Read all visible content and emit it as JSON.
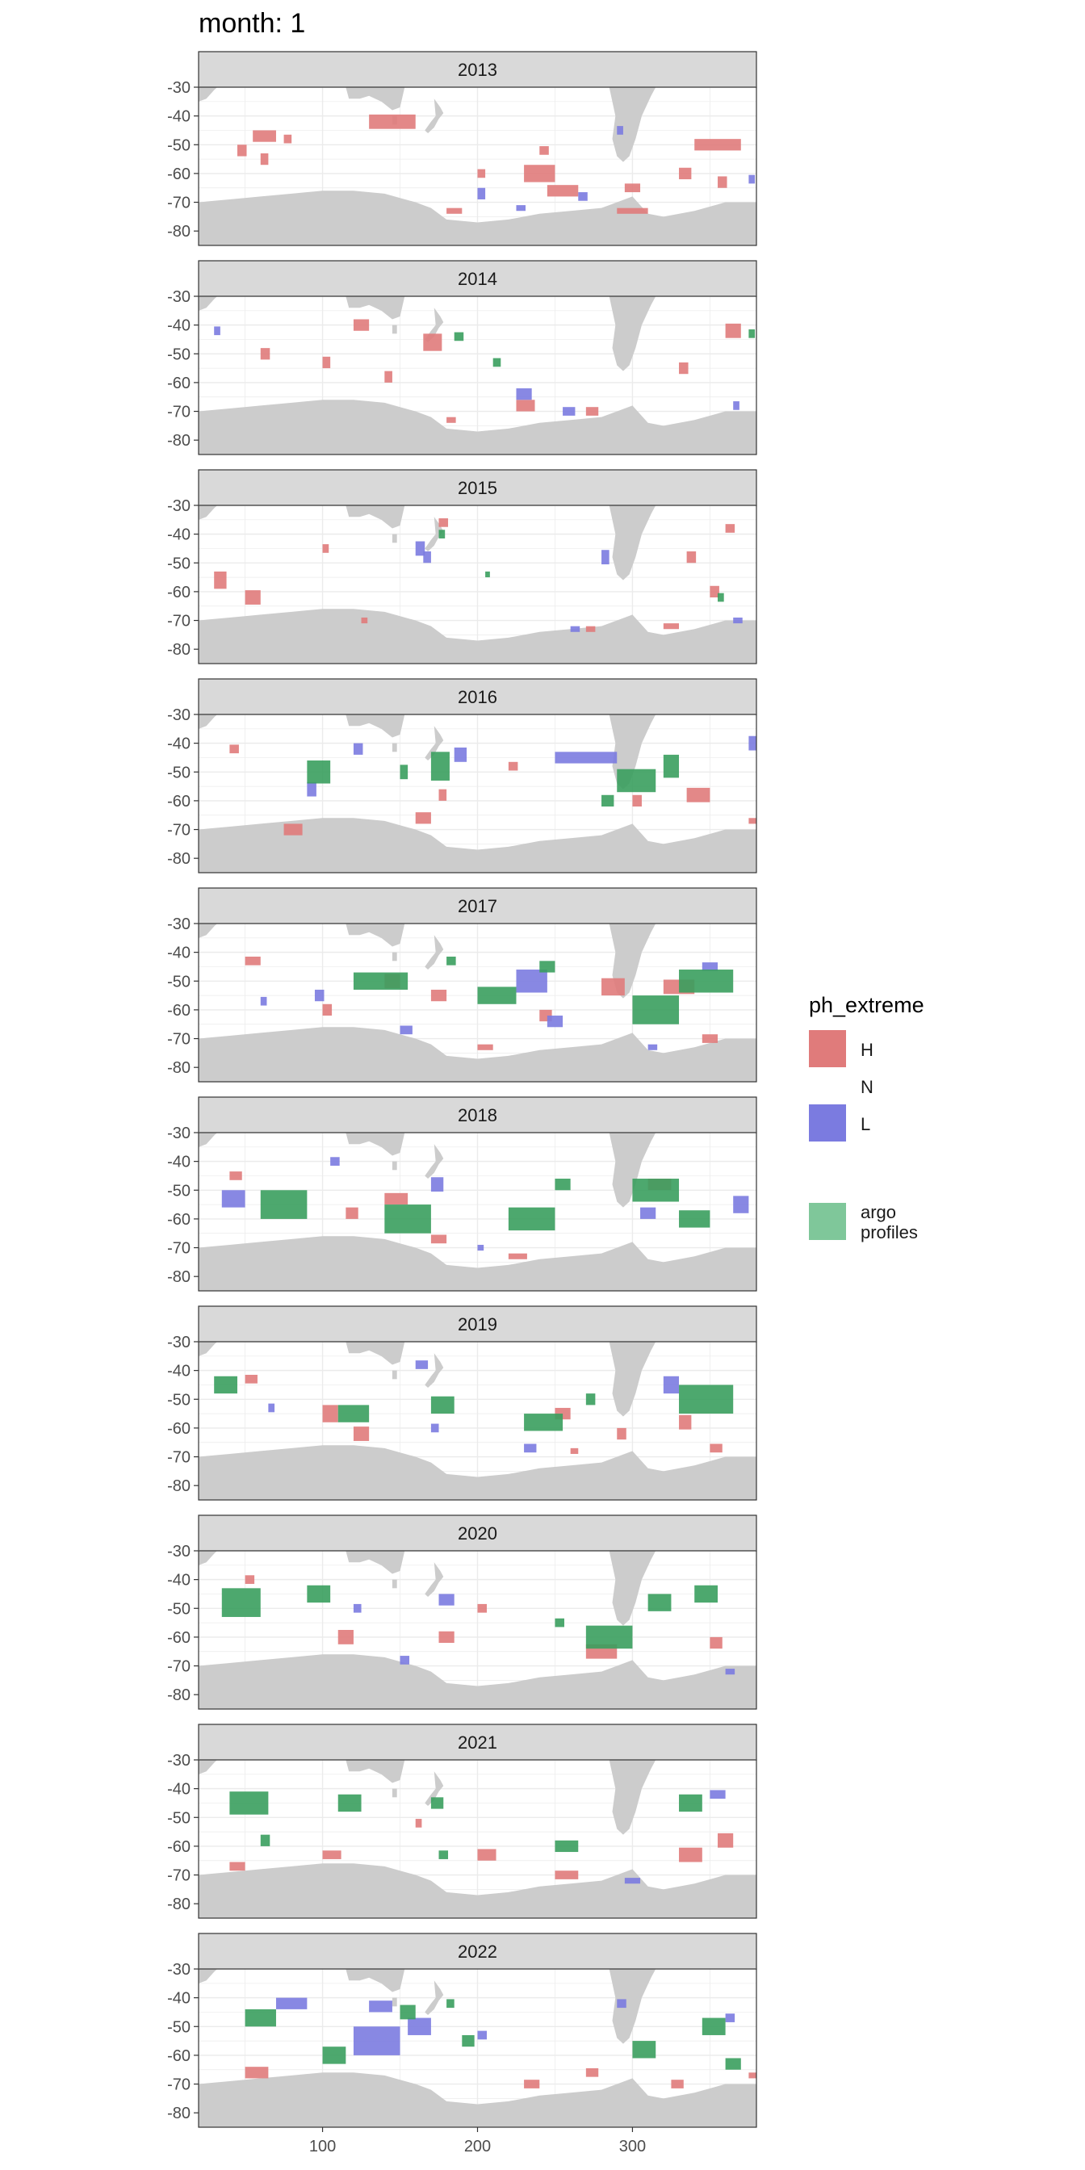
{
  "title": "month: 1",
  "colors": {
    "H": "#E07B7B",
    "N": "#FFFFFF",
    "L": "#7B7BE0",
    "argo": "#3A9E5E",
    "argo_legend": "#7FC79A",
    "land": "#CCCCCC",
    "strip": "#D9D9D9",
    "grid": "#EBEBEB",
    "panel_border": "#333333"
  },
  "chart_data": {
    "type": "heatmap",
    "facet_variable": "year",
    "facets": [
      "2013",
      "2014",
      "2015",
      "2016",
      "2017",
      "2018",
      "2019",
      "2020",
      "2021",
      "2022"
    ],
    "xlim": [
      20,
      380
    ],
    "ylim": [
      -85,
      -30
    ],
    "x_ticks": [
      100,
      200,
      300
    ],
    "x_tick_labels": [
      "100",
      "200",
      "300"
    ],
    "y_ticks": [
      -30,
      -40,
      -50,
      -60,
      -70,
      -80
    ],
    "y_tick_labels": [
      "-30",
      "-40",
      "-50",
      "-60",
      "-70",
      "-80"
    ],
    "legend": {
      "title": "ph_extreme",
      "position": "right",
      "entries": [
        {
          "key": "H",
          "label": "H"
        },
        {
          "key": "N",
          "label": "N"
        },
        {
          "key": "L",
          "label": "L"
        },
        {
          "key": "argo_legend",
          "label": "argo\nprofiles"
        }
      ]
    },
    "regions": [
      {
        "year": "2013",
        "H": [
          [
            55,
            -47,
            15,
            4
          ],
          [
            45,
            -52,
            6,
            4
          ],
          [
            60,
            -55,
            5,
            4
          ],
          [
            130,
            -42,
            30,
            5
          ],
          [
            75,
            -48,
            5,
            3
          ],
          [
            230,
            -60,
            20,
            6
          ],
          [
            245,
            -66,
            20,
            4
          ],
          [
            295,
            -65,
            10,
            3
          ],
          [
            340,
            -50,
            30,
            4
          ],
          [
            330,
            -60,
            8,
            4
          ],
          [
            355,
            -63,
            6,
            4
          ],
          [
            180,
            -73,
            10,
            2
          ],
          [
            290,
            -73,
            20,
            2
          ],
          [
            200,
            -60,
            5,
            3
          ],
          [
            240,
            -52,
            6,
            3
          ]
        ],
        "L": [
          [
            200,
            -67,
            5,
            4
          ],
          [
            265,
            -68,
            6,
            3
          ],
          [
            290,
            -45,
            4,
            3
          ],
          [
            225,
            -72,
            6,
            2
          ],
          [
            375,
            -62,
            4,
            3
          ]
        ],
        "argo": []
      },
      {
        "year": "2014",
        "H": [
          [
            120,
            -40,
            10,
            4
          ],
          [
            165,
            -46,
            12,
            6
          ],
          [
            60,
            -50,
            6,
            4
          ],
          [
            330,
            -55,
            6,
            4
          ],
          [
            360,
            -42,
            10,
            5
          ],
          [
            100,
            -53,
            5,
            4
          ],
          [
            225,
            -68,
            12,
            4
          ],
          [
            140,
            -58,
            5,
            4
          ],
          [
            270,
            -70,
            8,
            3
          ],
          [
            180,
            -73,
            6,
            2
          ]
        ],
        "L": [
          [
            30,
            -42,
            4,
            3
          ],
          [
            225,
            -64,
            10,
            4
          ],
          [
            255,
            -70,
            8,
            3
          ],
          [
            365,
            -68,
            4,
            3
          ]
        ],
        "argo": [
          [
            185,
            -44,
            6,
            3
          ],
          [
            210,
            -53,
            5,
            3
          ],
          [
            375,
            -43,
            4,
            3
          ]
        ]
      },
      {
        "year": "2015",
        "H": [
          [
            30,
            -56,
            8,
            6
          ],
          [
            50,
            -62,
            10,
            5
          ],
          [
            100,
            -45,
            4,
            3
          ],
          [
            175,
            -36,
            6,
            3
          ],
          [
            335,
            -48,
            6,
            4
          ],
          [
            350,
            -60,
            6,
            4
          ],
          [
            270,
            -73,
            6,
            2
          ],
          [
            320,
            -72,
            10,
            2
          ],
          [
            360,
            -38,
            6,
            3
          ],
          [
            125,
            -70,
            4,
            2
          ]
        ],
        "L": [
          [
            160,
            -45,
            6,
            5
          ],
          [
            165,
            -48,
            5,
            4
          ],
          [
            280,
            -48,
            5,
            5
          ],
          [
            260,
            -73,
            6,
            2
          ],
          [
            365,
            -70,
            6,
            2
          ]
        ],
        "argo": [
          [
            175,
            -40,
            4,
            3
          ],
          [
            355,
            -62,
            4,
            3
          ],
          [
            205,
            -54,
            3,
            2
          ]
        ]
      },
      {
        "year": "2016",
        "H": [
          [
            75,
            -70,
            12,
            4
          ],
          [
            160,
            -66,
            10,
            4
          ],
          [
            175,
            -58,
            5,
            4
          ],
          [
            335,
            -58,
            15,
            5
          ],
          [
            300,
            -60,
            6,
            4
          ],
          [
            375,
            -67,
            5,
            2
          ],
          [
            40,
            -42,
            6,
            3
          ],
          [
            220,
            -48,
            6,
            3
          ]
        ],
        "L": [
          [
            250,
            -45,
            40,
            4
          ],
          [
            90,
            -56,
            6,
            5
          ],
          [
            120,
            -42,
            6,
            4
          ],
          [
            185,
            -44,
            8,
            5
          ],
          [
            375,
            -40,
            5,
            5
          ]
        ],
        "argo": [
          [
            90,
            -50,
            15,
            8
          ],
          [
            170,
            -48,
            12,
            10
          ],
          [
            290,
            -53,
            25,
            8
          ],
          [
            320,
            -48,
            10,
            8
          ],
          [
            150,
            -50,
            5,
            5
          ],
          [
            280,
            -60,
            8,
            4
          ]
        ]
      },
      {
        "year": "2017",
        "H": [
          [
            50,
            -43,
            10,
            3
          ],
          [
            140,
            -50,
            10,
            5
          ],
          [
            170,
            -55,
            10,
            4
          ],
          [
            280,
            -52,
            15,
            6
          ],
          [
            320,
            -52,
            20,
            5
          ],
          [
            100,
            -60,
            6,
            4
          ],
          [
            345,
            -70,
            10,
            3
          ],
          [
            200,
            -73,
            10,
            2
          ],
          [
            240,
            -62,
            8,
            4
          ]
        ],
        "L": [
          [
            225,
            -50,
            20,
            8
          ],
          [
            245,
            -64,
            10,
            4
          ],
          [
            95,
            -55,
            6,
            4
          ],
          [
            60,
            -57,
            4,
            3
          ],
          [
            345,
            -45,
            10,
            3
          ],
          [
            310,
            -73,
            6,
            2
          ],
          [
            150,
            -67,
            8,
            3
          ]
        ],
        "argo": [
          [
            120,
            -50,
            35,
            6
          ],
          [
            200,
            -55,
            25,
            6
          ],
          [
            300,
            -60,
            30,
            10
          ],
          [
            330,
            -50,
            35,
            8
          ],
          [
            180,
            -43,
            6,
            3
          ],
          [
            240,
            -45,
            10,
            4
          ]
        ]
      },
      {
        "year": "2018",
        "H": [
          [
            140,
            -53,
            15,
            4
          ],
          [
            115,
            -58,
            8,
            4
          ],
          [
            310,
            -48,
            15,
            4
          ],
          [
            220,
            -73,
            12,
            2
          ],
          [
            170,
            -67,
            10,
            3
          ],
          [
            40,
            -45,
            8,
            3
          ]
        ],
        "L": [
          [
            35,
            -53,
            15,
            6
          ],
          [
            170,
            -48,
            8,
            5
          ],
          [
            305,
            -58,
            10,
            4
          ],
          [
            365,
            -55,
            10,
            6
          ],
          [
            200,
            -70,
            4,
            2
          ],
          [
            105,
            -40,
            6,
            3
          ]
        ],
        "argo": [
          [
            60,
            -55,
            30,
            10
          ],
          [
            140,
            -60,
            30,
            10
          ],
          [
            220,
            -60,
            30,
            8
          ],
          [
            300,
            -50,
            30,
            8
          ],
          [
            330,
            -60,
            20,
            6
          ],
          [
            250,
            -48,
            10,
            4
          ]
        ]
      },
      {
        "year": "2019",
        "H": [
          [
            100,
            -55,
            10,
            6
          ],
          [
            120,
            -62,
            10,
            5
          ],
          [
            250,
            -55,
            10,
            4
          ],
          [
            330,
            -58,
            8,
            5
          ],
          [
            350,
            -67,
            8,
            3
          ],
          [
            50,
            -43,
            8,
            3
          ],
          [
            290,
            -62,
            6,
            4
          ],
          [
            260,
            -68,
            5,
            2
          ]
        ],
        "L": [
          [
            320,
            -45,
            10,
            6
          ],
          [
            160,
            -38,
            8,
            3
          ],
          [
            170,
            -60,
            5,
            3
          ],
          [
            230,
            -67,
            8,
            3
          ],
          [
            65,
            -53,
            4,
            3
          ]
        ],
        "argo": [
          [
            30,
            -45,
            15,
            6
          ],
          [
            110,
            -55,
            20,
            6
          ],
          [
            170,
            -52,
            15,
            6
          ],
          [
            230,
            -58,
            25,
            6
          ],
          [
            330,
            -50,
            35,
            10
          ],
          [
            270,
            -50,
            6,
            4
          ]
        ]
      },
      {
        "year": "2020",
        "H": [
          [
            110,
            -60,
            10,
            5
          ],
          [
            175,
            -60,
            10,
            4
          ],
          [
            270,
            -65,
            20,
            5
          ],
          [
            350,
            -62,
            8,
            4
          ],
          [
            200,
            -50,
            6,
            3
          ],
          [
            50,
            -40,
            6,
            3
          ]
        ],
        "L": [
          [
            175,
            -47,
            10,
            4
          ],
          [
            120,
            -50,
            5,
            3
          ],
          [
            360,
            -72,
            6,
            2
          ],
          [
            150,
            -68,
            6,
            3
          ]
        ],
        "argo": [
          [
            35,
            -48,
            25,
            10
          ],
          [
            90,
            -45,
            15,
            6
          ],
          [
            270,
            -60,
            30,
            8
          ],
          [
            310,
            -48,
            15,
            6
          ],
          [
            340,
            -45,
            15,
            6
          ],
          [
            250,
            -55,
            6,
            3
          ]
        ]
      },
      {
        "year": "2021",
        "H": [
          [
            40,
            -67,
            10,
            3
          ],
          [
            100,
            -63,
            12,
            3
          ],
          [
            200,
            -63,
            12,
            4
          ],
          [
            250,
            -70,
            15,
            3
          ],
          [
            330,
            -63,
            15,
            5
          ],
          [
            355,
            -58,
            10,
            5
          ],
          [
            160,
            -52,
            4,
            3
          ]
        ],
        "L": [
          [
            350,
            -42,
            10,
            3
          ],
          [
            295,
            -72,
            10,
            2
          ]
        ],
        "argo": [
          [
            40,
            -45,
            25,
            8
          ],
          [
            110,
            -45,
            15,
            6
          ],
          [
            170,
            -45,
            8,
            4
          ],
          [
            250,
            -60,
            15,
            4
          ],
          [
            330,
            -45,
            15,
            6
          ],
          [
            175,
            -63,
            6,
            3
          ],
          [
            60,
            -58,
            6,
            4
          ]
        ]
      },
      {
        "year": "2022",
        "H": [
          [
            50,
            -66,
            15,
            4
          ],
          [
            230,
            -70,
            10,
            3
          ],
          [
            270,
            -66,
            8,
            3
          ],
          [
            325,
            -70,
            8,
            3
          ],
          [
            375,
            -67,
            5,
            2
          ]
        ],
        "L": [
          [
            120,
            -55,
            30,
            10
          ],
          [
            155,
            -50,
            15,
            6
          ],
          [
            70,
            -42,
            20,
            4
          ],
          [
            130,
            -43,
            15,
            4
          ],
          [
            290,
            -42,
            6,
            3
          ],
          [
            200,
            -53,
            6,
            3
          ],
          [
            360,
            -47,
            6,
            3
          ]
        ],
        "argo": [
          [
            50,
            -47,
            20,
            6
          ],
          [
            100,
            -60,
            15,
            6
          ],
          [
            150,
            -45,
            10,
            5
          ],
          [
            190,
            -55,
            8,
            4
          ],
          [
            300,
            -58,
            15,
            6
          ],
          [
            345,
            -50,
            15,
            6
          ],
          [
            360,
            -63,
            10,
            4
          ],
          [
            180,
            -42,
            5,
            3
          ]
        ]
      }
    ]
  }
}
